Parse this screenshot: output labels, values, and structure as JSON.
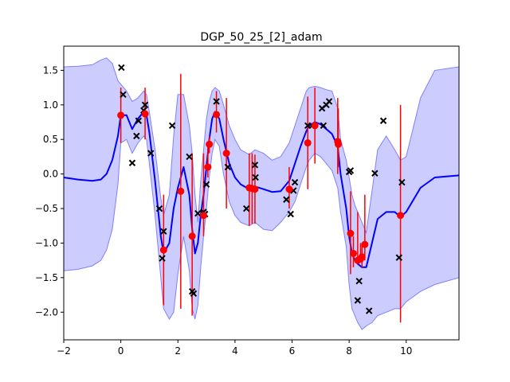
{
  "chart_data": {
    "type": "line",
    "title": "DGP_50_25_[2]_adam",
    "xlabel": "",
    "ylabel": "",
    "xlim": [
      -2,
      11.85
    ],
    "ylim": [
      -2.4,
      1.85
    ],
    "x_ticks": [
      -2,
      0,
      2,
      4,
      6,
      8,
      10
    ],
    "y_ticks": [
      -2.0,
      -1.5,
      -1.0,
      -0.5,
      0.0,
      0.5,
      1.0,
      1.5
    ],
    "grid": false,
    "colors": {
      "mean": "#0000ff",
      "band": "#ccccff",
      "band_edge": "#8080ff",
      "errorbar": "#ff0000",
      "inducing": "#ff0000",
      "observations": "#000000"
    },
    "series": [
      {
        "kind": "confidence_band",
        "x": [
          -2,
          -1.5,
          -1,
          -0.7,
          -0.5,
          -0.3,
          -0.1,
          0,
          0.2,
          0.4,
          0.6,
          0.8,
          0.9,
          1.0,
          1.2,
          1.4,
          1.5,
          1.7,
          1.85,
          2.0,
          2.2,
          2.4,
          2.5,
          2.6,
          2.7,
          2.8,
          2.9,
          3.0,
          3.1,
          3.2,
          3.3,
          3.45,
          3.6,
          3.8,
          4.0,
          4.2,
          4.5,
          4.7,
          5.0,
          5.3,
          5.6,
          5.9,
          6.1,
          6.3,
          6.5,
          6.6,
          6.8,
          7.0,
          7.2,
          7.4,
          7.6,
          7.7,
          7.9,
          8.0,
          8.1,
          8.2,
          8.3,
          8.45,
          8.6,
          8.8,
          9.0,
          9.3,
          9.6,
          9.8,
          10.0,
          10.5,
          11.0,
          11.85
        ],
        "upper": [
          1.55,
          1.56,
          1.58,
          1.65,
          1.68,
          1.6,
          1.35,
          1.3,
          1.2,
          1.05,
          1.1,
          1.2,
          1.15,
          0.9,
          0.35,
          -0.35,
          -0.6,
          -0.3,
          0.55,
          1.15,
          1.15,
          0.7,
          0.3,
          -0.3,
          -0.7,
          -0.1,
          0.35,
          0.8,
          1.05,
          1.2,
          1.25,
          1.2,
          1.0,
          0.7,
          0.5,
          0.35,
          0.28,
          0.35,
          0.3,
          0.2,
          0.25,
          0.45,
          0.7,
          0.95,
          1.2,
          1.25,
          1.27,
          1.25,
          1.22,
          1.2,
          0.95,
          0.5,
          0.2,
          -0.05,
          -0.3,
          -0.45,
          -0.55,
          -0.7,
          -0.85,
          -0.25,
          0.35,
          0.55,
          0.35,
          0.2,
          0.25,
          1.1,
          1.5,
          1.55
        ],
        "lower": [
          -1.4,
          -1.38,
          -1.33,
          -1.25,
          -1.1,
          -0.8,
          -0.15,
          0.45,
          0.5,
          0.3,
          0.45,
          0.55,
          0.5,
          0.15,
          -0.6,
          -1.5,
          -1.95,
          -2.1,
          -2.0,
          -1.45,
          -0.9,
          -1.4,
          -1.95,
          -2.1,
          -1.9,
          -1.35,
          -0.9,
          -0.5,
          -0.05,
          0.3,
          0.5,
          0.4,
          0.0,
          -0.4,
          -0.6,
          -0.7,
          -0.75,
          -0.7,
          -0.8,
          -0.82,
          -0.7,
          -0.55,
          -0.4,
          -0.15,
          0.1,
          0.2,
          0.3,
          0.25,
          0.15,
          0.05,
          -0.2,
          -0.55,
          -1.05,
          -1.6,
          -1.95,
          -2.05,
          -2.15,
          -2.25,
          -2.2,
          -2.15,
          -2.05,
          -2.0,
          -1.95,
          -1.95,
          -1.85,
          -1.7,
          -1.6,
          -1.5
        ]
      },
      {
        "kind": "mean",
        "x": [
          -2,
          -1.5,
          -1,
          -0.7,
          -0.5,
          -0.3,
          -0.1,
          0,
          0.2,
          0.4,
          0.6,
          0.8,
          0.9,
          1.0,
          1.2,
          1.4,
          1.5,
          1.7,
          1.85,
          2.0,
          2.2,
          2.4,
          2.5,
          2.6,
          2.7,
          2.8,
          2.9,
          3.0,
          3.1,
          3.2,
          3.3,
          3.45,
          3.6,
          3.8,
          4.0,
          4.2,
          4.5,
          4.7,
          5.0,
          5.3,
          5.6,
          5.9,
          6.1,
          6.3,
          6.5,
          6.6,
          6.8,
          7.0,
          7.2,
          7.4,
          7.6,
          7.7,
          7.9,
          8.0,
          8.1,
          8.2,
          8.3,
          8.45,
          8.6,
          8.8,
          9.0,
          9.3,
          9.6,
          9.8,
          10.0,
          10.5,
          11.0,
          11.85
        ],
        "y": [
          -0.05,
          -0.08,
          -0.1,
          -0.08,
          0.0,
          0.2,
          0.55,
          0.85,
          0.85,
          0.65,
          0.8,
          0.9,
          0.85,
          0.6,
          -0.1,
          -0.9,
          -1.15,
          -1.0,
          -0.5,
          -0.2,
          0.1,
          -0.3,
          -0.8,
          -1.15,
          -1.0,
          -0.6,
          -0.3,
          0.1,
          0.5,
          0.8,
          0.9,
          0.8,
          0.5,
          0.15,
          -0.05,
          -0.15,
          -0.22,
          -0.18,
          -0.22,
          -0.26,
          -0.25,
          -0.1,
          0.15,
          0.4,
          0.62,
          0.7,
          0.75,
          0.72,
          0.65,
          0.58,
          0.4,
          0.0,
          -0.5,
          -0.9,
          -1.15,
          -1.25,
          -1.3,
          -1.35,
          -1.35,
          -1.0,
          -0.65,
          -0.55,
          -0.55,
          -0.62,
          -0.55,
          -0.2,
          -0.05,
          -0.02
        ]
      },
      {
        "kind": "errorbars",
        "x": [
          0.0,
          0.85,
          1.5,
          2.1,
          2.5,
          2.9,
          3.05,
          3.1,
          3.35,
          3.7,
          4.5,
          4.6,
          4.7,
          5.9,
          6.55,
          6.8,
          7.6,
          7.62,
          8.05,
          8.15,
          8.3,
          8.4,
          8.45,
          8.55,
          9.8
        ],
        "low": [
          0.45,
          0.5,
          -1.9,
          -1.95,
          -2.05,
          -0.9,
          -0.05,
          0.3,
          0.6,
          -0.5,
          -0.75,
          -0.72,
          -0.72,
          -0.5,
          -0.22,
          0.15,
          0.0,
          0.1,
          -1.45,
          -1.35,
          -1.3,
          -1.2,
          -1.35,
          -1.25,
          -2.15
        ],
        "high": [
          1.25,
          1.25,
          -0.3,
          1.45,
          0.3,
          0.3,
          0.45,
          0.55,
          1.2,
          1.1,
          0.3,
          0.3,
          0.28,
          0.1,
          1.12,
          1.25,
          1.1,
          0.95,
          -0.25,
          -0.9,
          -0.55,
          -1.0,
          -1.0,
          -0.3,
          1.0
        ]
      },
      {
        "kind": "inducing_points",
        "x": [
          0.0,
          0.85,
          1.5,
          2.1,
          2.5,
          2.9,
          3.05,
          3.1,
          3.35,
          3.7,
          4.5,
          4.6,
          4.7,
          5.9,
          6.55,
          6.8,
          7.6,
          7.62,
          8.05,
          8.15,
          8.3,
          8.4,
          8.45,
          8.55,
          9.8
        ],
        "y": [
          0.85,
          0.87,
          -1.1,
          -0.25,
          -0.9,
          -0.6,
          0.1,
          0.43,
          0.86,
          0.3,
          -0.2,
          -0.21,
          -0.22,
          -0.22,
          0.45,
          0.7,
          0.47,
          0.43,
          -0.86,
          -1.15,
          -1.25,
          -1.23,
          -1.2,
          -1.02,
          -0.6
        ]
      },
      {
        "kind": "observations",
        "x": [
          0.02,
          0.08,
          0.4,
          0.55,
          0.62,
          0.8,
          0.85,
          1.05,
          1.35,
          1.45,
          1.5,
          1.8,
          2.4,
          2.5,
          2.55,
          2.7,
          2.9,
          2.95,
          3.0,
          3.35,
          3.75,
          4.4,
          4.7,
          4.72,
          5.8,
          5.95,
          6.05,
          6.1,
          6.55,
          6.7,
          7.05,
          7.1,
          7.2,
          7.3,
          8.0,
          8.05,
          8.3,
          8.35,
          8.7,
          8.9,
          9.2,
          9.75,
          9.85
        ],
        "y": [
          1.54,
          1.15,
          0.16,
          0.55,
          0.77,
          0.92,
          1.0,
          0.3,
          -0.5,
          -1.22,
          -0.83,
          0.7,
          0.25,
          -1.7,
          -1.73,
          -0.57,
          -0.55,
          -0.58,
          -0.15,
          1.05,
          0.1,
          -0.5,
          0.13,
          -0.05,
          -0.37,
          -0.58,
          -0.24,
          -0.12,
          0.7,
          0.7,
          0.95,
          0.7,
          1.0,
          1.05,
          0.03,
          0.05,
          -1.83,
          -1.55,
          -1.98,
          0.01,
          0.77,
          -1.21,
          -0.12
        ]
      }
    ]
  }
}
